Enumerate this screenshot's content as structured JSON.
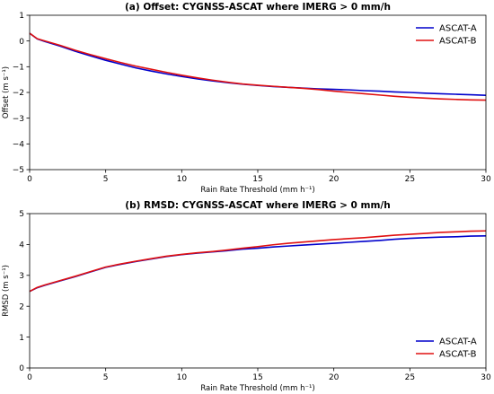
{
  "chart_data": [
    {
      "type": "line",
      "title": "(a) Offset: CYGNSS-ASCAT where IMERG > 0 mm/h",
      "xlabel": "Rain Rate Threshold (mm h⁻¹)",
      "ylabel": "Offset (m s⁻¹)",
      "xlim": [
        0,
        30
      ],
      "ylim": [
        -5,
        1
      ],
      "xticks": [
        "0",
        "5",
        "10",
        "15",
        "20",
        "25",
        "30"
      ],
      "yticks": [
        "−5",
        "−4",
        "−3",
        "−2",
        "−1",
        "0",
        "1"
      ],
      "legend_position": "top-right",
      "series": [
        {
          "name": "ASCAT-A",
          "color": "#0000cc",
          "x": [
            0,
            0.5,
            1,
            2,
            3,
            4,
            5,
            6,
            7,
            8,
            9,
            10,
            11,
            12,
            13,
            14,
            15,
            16,
            17,
            18,
            19,
            20,
            21,
            22,
            23,
            24,
            25,
            26,
            27,
            28,
            29,
            30
          ],
          "y": [
            0.3,
            0.08,
            -0.02,
            -0.2,
            -0.4,
            -0.58,
            -0.75,
            -0.9,
            -1.05,
            -1.17,
            -1.28,
            -1.38,
            -1.47,
            -1.55,
            -1.62,
            -1.68,
            -1.73,
            -1.77,
            -1.8,
            -1.83,
            -1.86,
            -1.88,
            -1.9,
            -1.93,
            -1.95,
            -1.98,
            -2.0,
            -2.03,
            -2.05,
            -2.07,
            -2.09,
            -2.11
          ]
        },
        {
          "name": "ASCAT-B",
          "color": "#e01010",
          "x": [
            0,
            0.5,
            1,
            2,
            3,
            4,
            5,
            6,
            7,
            8,
            9,
            10,
            11,
            12,
            13,
            14,
            15,
            16,
            17,
            18,
            19,
            20,
            21,
            22,
            23,
            24,
            25,
            26,
            27,
            28,
            29,
            30
          ],
          "y": [
            0.3,
            0.09,
            0.0,
            -0.17,
            -0.36,
            -0.53,
            -0.69,
            -0.84,
            -0.98,
            -1.1,
            -1.22,
            -1.33,
            -1.43,
            -1.52,
            -1.6,
            -1.67,
            -1.72,
            -1.76,
            -1.8,
            -1.84,
            -1.89,
            -1.95,
            -2.0,
            -2.05,
            -2.1,
            -2.15,
            -2.19,
            -2.22,
            -2.25,
            -2.27,
            -2.29,
            -2.3
          ]
        }
      ]
    },
    {
      "type": "line",
      "title": "(b) RMSD: CYGNSS-ASCAT where IMERG > 0 mm/h",
      "xlabel": "Rain Rate Threshold (mm h⁻¹)",
      "ylabel": "RMSD (m s⁻¹)",
      "xlim": [
        0,
        30
      ],
      "ylim": [
        0,
        5
      ],
      "xticks": [
        "0",
        "5",
        "10",
        "15",
        "20",
        "25",
        "30"
      ],
      "yticks": [
        "0",
        "1",
        "2",
        "3",
        "4",
        "5"
      ],
      "legend_position": "bottom-right",
      "series": [
        {
          "name": "ASCAT-A",
          "color": "#0000cc",
          "x": [
            0,
            0.5,
            1,
            2,
            3,
            4,
            5,
            6,
            7,
            8,
            9,
            10,
            11,
            12,
            13,
            14,
            15,
            16,
            17,
            18,
            19,
            20,
            21,
            22,
            23,
            24,
            25,
            26,
            27,
            28,
            29,
            30
          ],
          "y": [
            2.48,
            2.6,
            2.68,
            2.82,
            2.96,
            3.11,
            3.26,
            3.36,
            3.45,
            3.53,
            3.61,
            3.67,
            3.72,
            3.76,
            3.8,
            3.85,
            3.88,
            3.92,
            3.95,
            3.98,
            4.01,
            4.04,
            4.07,
            4.1,
            4.13,
            4.17,
            4.2,
            4.22,
            4.24,
            4.25,
            4.27,
            4.28
          ]
        },
        {
          "name": "ASCAT-B",
          "color": "#e01010",
          "x": [
            0,
            0.5,
            1,
            2,
            3,
            4,
            5,
            6,
            7,
            8,
            9,
            10,
            11,
            12,
            13,
            14,
            15,
            16,
            17,
            18,
            19,
            20,
            21,
            22,
            23,
            24,
            25,
            26,
            27,
            28,
            29,
            30
          ],
          "y": [
            2.48,
            2.61,
            2.69,
            2.83,
            2.97,
            3.12,
            3.27,
            3.37,
            3.46,
            3.54,
            3.62,
            3.68,
            3.73,
            3.77,
            3.82,
            3.88,
            3.93,
            3.99,
            4.04,
            4.08,
            4.12,
            4.16,
            4.19,
            4.22,
            4.26,
            4.3,
            4.33,
            4.36,
            4.39,
            4.41,
            4.43,
            4.44
          ]
        }
      ]
    }
  ]
}
